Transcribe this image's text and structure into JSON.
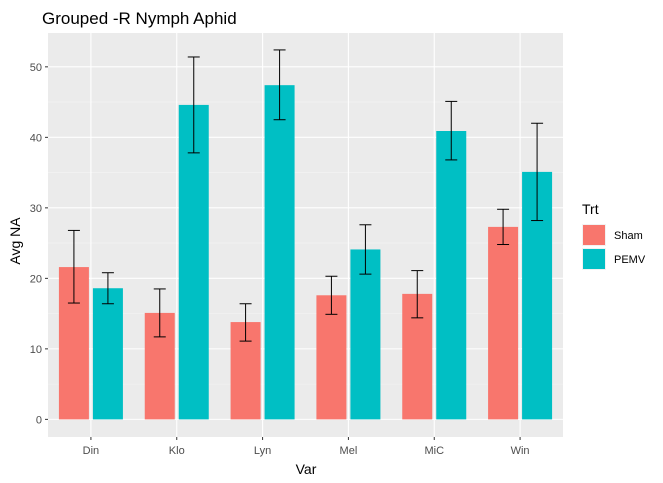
{
  "chart_data": {
    "type": "bar",
    "title": "Grouped -R Nymph Aphid",
    "xlabel": "Var",
    "ylabel": "Avg NA",
    "categories": [
      "Din",
      "Klo",
      "Lyn",
      "Mel",
      "MiC",
      "Win"
    ],
    "ylim": [
      -2.5,
      54.8
    ],
    "yticks": [
      0,
      10,
      20,
      30,
      40,
      50
    ],
    "grid": true,
    "legend": {
      "title": "Trt",
      "position": "right"
    },
    "series": [
      {
        "name": "Sham",
        "color": "#F8766D",
        "values": [
          21.6,
          15.1,
          13.8,
          17.6,
          17.8,
          27.3
        ],
        "err_low": [
          16.5,
          11.7,
          11.1,
          14.9,
          14.4,
          24.8
        ],
        "err_high": [
          26.8,
          18.5,
          16.4,
          20.3,
          21.1,
          29.8
        ]
      },
      {
        "name": "PEMV",
        "color": "#00BFC4",
        "values": [
          18.6,
          44.6,
          47.4,
          24.1,
          40.9,
          35.1
        ],
        "err_low": [
          16.4,
          37.8,
          42.5,
          20.6,
          36.8,
          28.2
        ],
        "err_high": [
          20.8,
          51.4,
          52.4,
          27.6,
          45.1,
          42.0
        ]
      }
    ],
    "colors": {
      "panel_bg": "#EBEBEB",
      "grid_major": "#FFFFFF",
      "errorbar": "#000000"
    }
  }
}
